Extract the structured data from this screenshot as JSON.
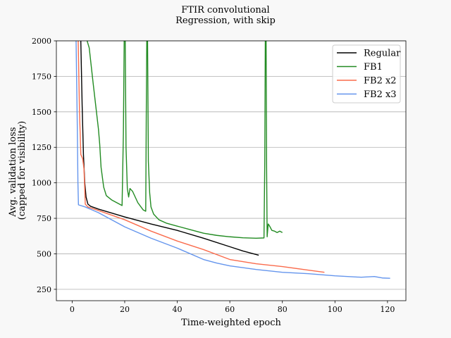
{
  "chart_data": {
    "type": "line",
    "title": "FTIR convolutional",
    "subtitle": "Regression, with skip",
    "xlabel": "Time-weighted epoch",
    "ylabel_line1": "Avg. validation loss",
    "ylabel_line2": "(capped for visibility)",
    "xlim": [
      -6,
      127
    ],
    "ylim": [
      170,
      2000
    ],
    "xticks": [
      0,
      20,
      40,
      60,
      80,
      100,
      120
    ],
    "yticks": [
      250,
      500,
      750,
      1000,
      1250,
      1500,
      1750,
      2000
    ],
    "grid": "horizontal",
    "legend": "top-right",
    "series": [
      {
        "name": "Regular",
        "color": "#000000",
        "points": [
          [
            3.3,
            2000
          ],
          [
            3.8,
            1550
          ],
          [
            4.3,
            1200
          ],
          [
            4.8,
            1000
          ],
          [
            5.3,
            900
          ],
          [
            6,
            850
          ],
          [
            7,
            835
          ],
          [
            10,
            815
          ],
          [
            20,
            760
          ],
          [
            30,
            710
          ],
          [
            40,
            665
          ],
          [
            50,
            610
          ],
          [
            60,
            550
          ],
          [
            65,
            520
          ],
          [
            71,
            490
          ]
        ]
      },
      {
        "name": "FB1",
        "color": "#228b22",
        "points": [
          [
            5.7,
            2000
          ],
          [
            6.5,
            1950
          ],
          [
            8,
            1700
          ],
          [
            9,
            1540
          ],
          [
            10,
            1380
          ],
          [
            10.5,
            1270
          ],
          [
            11,
            1110
          ],
          [
            12,
            970
          ],
          [
            13,
            910
          ],
          [
            15,
            880
          ],
          [
            17,
            860
          ],
          [
            19,
            840
          ],
          [
            19.5,
            1350
          ],
          [
            19.8,
            2000
          ],
          [
            20.2,
            2000
          ],
          [
            20.5,
            1250
          ],
          [
            21,
            960
          ],
          [
            21.5,
            900
          ],
          [
            22,
            960
          ],
          [
            23,
            940
          ],
          [
            25,
            860
          ],
          [
            27,
            810
          ],
          [
            28,
            800
          ],
          [
            28.2,
            1450
          ],
          [
            28.4,
            2000
          ],
          [
            28.7,
            2000
          ],
          [
            29,
            1150
          ],
          [
            29.5,
            930
          ],
          [
            30,
            830
          ],
          [
            31,
            780
          ],
          [
            33,
            740
          ],
          [
            36,
            715
          ],
          [
            40,
            695
          ],
          [
            45,
            670
          ],
          [
            50,
            645
          ],
          [
            55,
            630
          ],
          [
            60,
            620
          ],
          [
            65,
            613
          ],
          [
            70,
            610
          ],
          [
            73,
            612
          ],
          [
            73.3,
            1150
          ],
          [
            73.5,
            2000
          ],
          [
            73.8,
            2000
          ],
          [
            74,
            1100
          ],
          [
            74.2,
            620
          ],
          [
            74.6,
            710
          ],
          [
            75,
            700
          ],
          [
            76,
            665
          ],
          [
            77,
            660
          ],
          [
            78,
            650
          ],
          [
            79,
            660
          ],
          [
            80,
            650
          ]
        ]
      },
      {
        "name": "FB2 x2",
        "color": "#fa6b4c",
        "points": [
          [
            2.3,
            2000
          ],
          [
            2.8,
            1500
          ],
          [
            3.3,
            1200
          ],
          [
            4,
            1170
          ],
          [
            4.5,
            1100
          ],
          [
            5,
            850
          ],
          [
            6,
            830
          ],
          [
            10,
            805
          ],
          [
            20,
            740
          ],
          [
            30,
            660
          ],
          [
            40,
            590
          ],
          [
            50,
            530
          ],
          [
            60,
            460
          ],
          [
            70,
            430
          ],
          [
            80,
            410
          ],
          [
            90,
            385
          ],
          [
            96,
            370
          ]
        ]
      },
      {
        "name": "FB2 x3",
        "color": "#6495ed",
        "points": [
          [
            1.5,
            2000
          ],
          [
            2,
            1350
          ],
          [
            2.2,
            1000
          ],
          [
            2.4,
            845
          ],
          [
            5,
            830
          ],
          [
            10,
            790
          ],
          [
            20,
            690
          ],
          [
            30,
            610
          ],
          [
            40,
            540
          ],
          [
            50,
            460
          ],
          [
            55,
            435
          ],
          [
            60,
            415
          ],
          [
            70,
            390
          ],
          [
            80,
            370
          ],
          [
            90,
            360
          ],
          [
            100,
            345
          ],
          [
            110,
            335
          ],
          [
            115,
            340
          ],
          [
            118,
            330
          ],
          [
            121,
            328
          ]
        ]
      }
    ]
  }
}
